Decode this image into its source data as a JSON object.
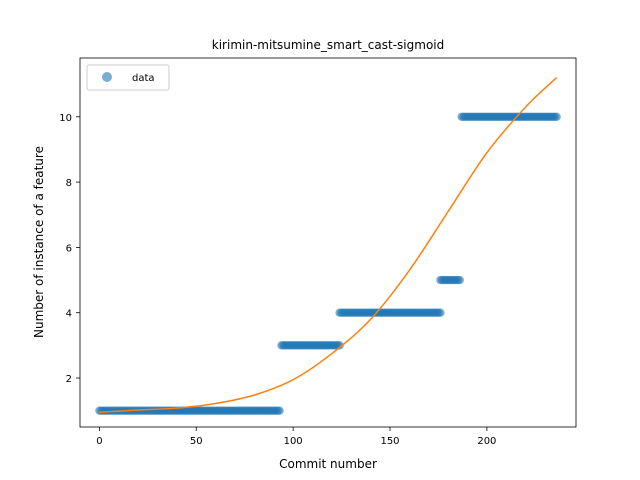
{
  "chart_data": {
    "type": "scatter",
    "title": "kirimin-mitsumine_smart_cast-sigmoid",
    "xlabel": "Commit number",
    "ylabel": "Number of instance of a feature",
    "xlim": [
      -10,
      246
    ],
    "ylim": [
      0.5,
      11.8
    ],
    "xticks": [
      0,
      50,
      100,
      150,
      200
    ],
    "yticks": [
      2,
      4,
      6,
      8,
      10
    ],
    "grid": false,
    "legend": {
      "placement": "top-left",
      "entries": [
        "data"
      ]
    },
    "series": [
      {
        "name": "data",
        "kind": "points",
        "color": "#1f77b4",
        "segments": [
          {
            "x_start": 0,
            "x_end": 93,
            "y": 1
          },
          {
            "x_start": 94,
            "x_end": 124,
            "y": 3
          },
          {
            "x_start": 124,
            "x_end": 176,
            "y": 4
          },
          {
            "x_start": 176,
            "x_end": 186,
            "y": 5
          },
          {
            "x_start": 187,
            "x_end": 236,
            "y": 10
          }
        ]
      },
      {
        "name": "",
        "kind": "line",
        "color": "#ff7f0e",
        "x": [
          0,
          20,
          40,
          60,
          80,
          100,
          120,
          140,
          160,
          180,
          200,
          220,
          236
        ],
        "y": [
          0.95,
          1.02,
          1.08,
          1.22,
          1.48,
          1.95,
          2.75,
          3.8,
          5.3,
          7.1,
          8.9,
          10.3,
          11.2
        ]
      }
    ]
  }
}
